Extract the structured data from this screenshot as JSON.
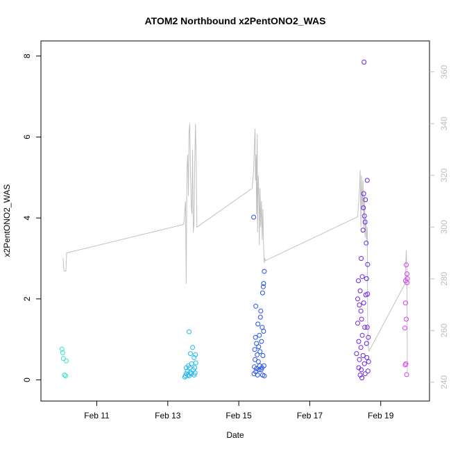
{
  "chart_data": {
    "type": "scatter",
    "title": "ATOM2 Northbound x2PentONO2_WAS",
    "xlabel": "Date",
    "ylabel": "x2PentONO2_WAS",
    "x_ticks": [
      "Feb 11",
      "Feb 13",
      "Feb 15",
      "Feb 17",
      "Feb 19"
    ],
    "x_tick_values": [
      11,
      13,
      15,
      17,
      19
    ],
    "xlim": [
      9.7,
      20.1
    ],
    "y_ticks": [
      "0",
      "2",
      "4",
      "6",
      "8"
    ],
    "y_tick_values": [
      0,
      2,
      4,
      6,
      8
    ],
    "ylim": [
      -0.3,
      8.15
    ],
    "y2_ticks": [
      "240",
      "260",
      "280",
      "300",
      "320",
      "340",
      "360"
    ],
    "y2_tick_values": [
      240,
      260,
      280,
      300,
      320,
      340,
      360
    ],
    "y2lim": [
      236.2,
      368.5
    ],
    "grid": false,
    "colors": {
      "frame": "#000000",
      "right_axis": "#bdbdbd",
      "track_line": "#c0c0c0",
      "day_10": "#33e6c8",
      "day_13": "#1eb8f0",
      "day_15": "#1f4ff0",
      "day_18": "#6a1ff0",
      "day_19": "#d63cf0"
    },
    "series": [
      {
        "color_key": "day_10",
        "points": [
          [
            10.02,
            0.76
          ],
          [
            10.04,
            0.67
          ],
          [
            10.06,
            0.53
          ],
          [
            10.09,
            0.12
          ],
          [
            10.12,
            0.1
          ],
          [
            10.14,
            0.47
          ]
        ]
      },
      {
        "color_key": "day_13",
        "points": [
          [
            13.48,
            0.07
          ],
          [
            13.5,
            0.1
          ],
          [
            13.52,
            0.15
          ],
          [
            13.52,
            0.3
          ],
          [
            13.55,
            0.22
          ],
          [
            13.57,
            0.12
          ],
          [
            13.58,
            0.35
          ],
          [
            13.6,
            0.1
          ],
          [
            13.6,
            1.19
          ],
          [
            13.62,
            0.3
          ],
          [
            13.63,
            0.18
          ],
          [
            13.64,
            0.65
          ],
          [
            13.66,
            0.15
          ],
          [
            13.67,
            0.4
          ],
          [
            13.7,
            0.8
          ],
          [
            13.72,
            0.25
          ],
          [
            13.74,
            0.12
          ],
          [
            13.74,
            0.55
          ],
          [
            13.76,
            0.3
          ],
          [
            13.77,
            0.17
          ],
          [
            13.78,
            0.62
          ],
          [
            13.79,
            0.42
          ]
        ]
      },
      {
        "color_key": "day_15",
        "points": [
          [
            15.42,
            4.02
          ],
          [
            15.43,
            0.15
          ],
          [
            15.44,
            0.32
          ],
          [
            15.45,
            0.75
          ],
          [
            15.46,
            0.5
          ],
          [
            15.47,
            1.05
          ],
          [
            15.48,
            0.2
          ],
          [
            15.48,
            1.82
          ],
          [
            15.5,
            0.9
          ],
          [
            15.5,
            0.28
          ],
          [
            15.52,
            0.62
          ],
          [
            15.53,
            0.12
          ],
          [
            15.54,
            1.38
          ],
          [
            15.55,
            0.45
          ],
          [
            15.56,
            0.82
          ],
          [
            15.57,
            0.25
          ],
          [
            15.58,
            1.1
          ],
          [
            15.59,
            0.35
          ],
          [
            15.6,
            0.7
          ],
          [
            15.61,
            1.55
          ],
          [
            15.62,
            1.7
          ],
          [
            15.63,
            0.25
          ],
          [
            15.64,
            0.95
          ],
          [
            15.65,
            0.3
          ],
          [
            15.66,
            1.3
          ],
          [
            15.67,
            0.12
          ],
          [
            15.67,
            2.15
          ],
          [
            15.68,
            0.6
          ],
          [
            15.69,
            2.3
          ],
          [
            15.7,
            1.2
          ],
          [
            15.7,
            2.38
          ],
          [
            15.71,
            0.35
          ],
          [
            15.72,
            2.68
          ],
          [
            15.72,
            0.1
          ]
        ]
      },
      {
        "color_key": "day_18",
        "points": [
          [
            18.32,
            0.65
          ],
          [
            18.35,
            2.0
          ],
          [
            18.35,
            1.4
          ],
          [
            18.37,
            2.45
          ],
          [
            18.38,
            0.3
          ],
          [
            18.38,
            0.95
          ],
          [
            18.4,
            1.85
          ],
          [
            18.4,
            0.5
          ],
          [
            18.42,
            2.2
          ],
          [
            18.42,
            0.12
          ],
          [
            18.44,
            1.7
          ],
          [
            18.44,
            0.8
          ],
          [
            18.45,
            3.0
          ],
          [
            18.45,
            0.25
          ],
          [
            18.46,
            1.5
          ],
          [
            18.47,
            0.05
          ],
          [
            18.48,
            2.55
          ],
          [
            18.48,
            1.1
          ],
          [
            18.5,
            0.6
          ],
          [
            18.5,
            3.7
          ],
          [
            18.51,
            4.25
          ],
          [
            18.52,
            4.6
          ],
          [
            18.52,
            1.9
          ],
          [
            18.53,
            7.85
          ],
          [
            18.54,
            0.4
          ],
          [
            18.54,
            4.05
          ],
          [
            18.55,
            1.3
          ],
          [
            18.56,
            3.9
          ],
          [
            18.56,
            0.15
          ],
          [
            18.57,
            4.45
          ],
          [
            18.58,
            2.1
          ],
          [
            18.59,
            3.38
          ],
          [
            18.6,
            0.9
          ],
          [
            18.6,
            2.5
          ],
          [
            18.61,
            0.55
          ],
          [
            18.62,
            4.93
          ],
          [
            18.62,
            1.3
          ],
          [
            18.63,
            2.85
          ],
          [
            18.63,
            2.12
          ],
          [
            18.64,
            0.22
          ],
          [
            18.65,
            1.05
          ],
          [
            18.66,
            0.45
          ]
        ]
      },
      {
        "color_key": "day_19",
        "points": [
          [
            19.68,
            1.28
          ],
          [
            19.69,
            0.37
          ],
          [
            19.7,
            1.9
          ],
          [
            19.7,
            2.45
          ],
          [
            19.71,
            0.4
          ],
          [
            19.72,
            1.5
          ],
          [
            19.72,
            2.84
          ],
          [
            19.73,
            0.13
          ],
          [
            19.74,
            2.62
          ],
          [
            19.74,
            2.4
          ],
          [
            19.75,
            2.5
          ]
        ]
      }
    ],
    "secondary_series": {
      "axis": "right",
      "points": [
        [
          10.05,
          288
        ],
        [
          10.07,
          284
        ],
        [
          10.08,
          283
        ],
        [
          10.1,
          283
        ],
        [
          10.12,
          283
        ],
        [
          10.13,
          283
        ],
        [
          10.15,
          290
        ],
        [
          13.45,
          301
        ],
        [
          13.5,
          310
        ],
        [
          13.52,
          278
        ],
        [
          13.54,
          322
        ],
        [
          13.56,
          328
        ],
        [
          13.58,
          312
        ],
        [
          13.6,
          337
        ],
        [
          13.62,
          340
        ],
        [
          13.64,
          322
        ],
        [
          13.66,
          308
        ],
        [
          13.68,
          305
        ],
        [
          13.7,
          330
        ],
        [
          13.72,
          298
        ],
        [
          13.74,
          302
        ],
        [
          13.76,
          325
        ],
        [
          13.78,
          340
        ],
        [
          13.8,
          327
        ],
        [
          13.82,
          300
        ],
        [
          15.38,
          315
        ],
        [
          15.4,
          319
        ],
        [
          15.42,
          322
        ],
        [
          15.44,
          332
        ],
        [
          15.46,
          338
        ],
        [
          15.47,
          318
        ],
        [
          15.49,
          328
        ],
        [
          15.5,
          305
        ],
        [
          15.52,
          336
        ],
        [
          15.53,
          298
        ],
        [
          15.55,
          320
        ],
        [
          15.57,
          311
        ],
        [
          15.58,
          293
        ],
        [
          15.6,
          315
        ],
        [
          15.62,
          300
        ],
        [
          15.64,
          310
        ],
        [
          15.66,
          295
        ],
        [
          15.68,
          307
        ],
        [
          15.7,
          292
        ],
        [
          15.72,
          286
        ],
        [
          15.73,
          288
        ],
        [
          15.75,
          287
        ],
        [
          18.35,
          304
        ],
        [
          18.4,
          314
        ],
        [
          18.42,
          322
        ],
        [
          18.44,
          300
        ],
        [
          18.46,
          320
        ],
        [
          18.48,
          307
        ],
        [
          18.5,
          318
        ],
        [
          18.52,
          300
        ],
        [
          18.54,
          312
        ],
        [
          18.56,
          296
        ],
        [
          18.58,
          304
        ],
        [
          18.6,
          295
        ],
        [
          18.62,
          300
        ],
        [
          18.63,
          265
        ],
        [
          18.65,
          254
        ],
        [
          18.67,
          252
        ],
        [
          19.68,
          278
        ],
        [
          19.72,
          291
        ],
        [
          19.74,
          279
        ],
        [
          19.75,
          244
        ]
      ]
    }
  }
}
